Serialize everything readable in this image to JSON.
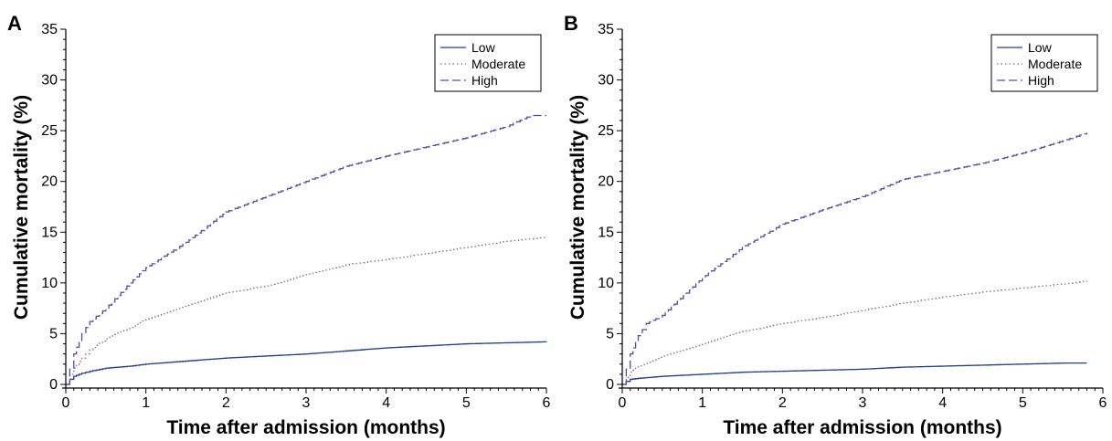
{
  "chart_data": [
    {
      "type": "line",
      "panel_label": "A",
      "xlabel": "Time after admission (months)",
      "ylabel": "Cumulative mortality (%)",
      "xlim": [
        0,
        6
      ],
      "ylim": [
        0,
        35
      ],
      "xticks": [
        0,
        1,
        2,
        3,
        4,
        5,
        6
      ],
      "yticks": [
        0,
        5,
        10,
        15,
        20,
        25,
        30,
        35
      ],
      "grid": false,
      "legend_position": "top-right",
      "series": [
        {
          "name": "Low",
          "style": "solid",
          "color": "#1f3f8f",
          "x": [
            0,
            0.05,
            0.1,
            0.2,
            0.3,
            0.5,
            0.8,
            1.0,
            1.5,
            2.0,
            2.5,
            3.0,
            3.5,
            4.0,
            4.5,
            5.0,
            5.5,
            6.0
          ],
          "y": [
            0,
            0.5,
            0.8,
            1.1,
            1.3,
            1.6,
            1.8,
            2.0,
            2.3,
            2.6,
            2.8,
            3.0,
            3.3,
            3.6,
            3.8,
            4.0,
            4.1,
            4.2
          ]
        },
        {
          "name": "Moderate",
          "style": "dotted",
          "color": "#8a6a9a",
          "x": [
            0,
            0.05,
            0.1,
            0.2,
            0.3,
            0.5,
            0.8,
            1.0,
            1.5,
            2.0,
            2.5,
            3.0,
            3.5,
            4.0,
            4.5,
            5.0,
            5.5,
            6.0
          ],
          "y": [
            0,
            1.0,
            1.6,
            2.6,
            3.4,
            4.5,
            5.6,
            6.4,
            7.8,
            9.0,
            9.7,
            10.8,
            11.8,
            12.3,
            12.9,
            13.5,
            14.1,
            14.5
          ]
        },
        {
          "name": "High",
          "style": "dashed",
          "color": "#5a4aa0",
          "x": [
            0,
            0.05,
            0.1,
            0.2,
            0.3,
            0.5,
            0.8,
            1.0,
            1.5,
            2.0,
            2.5,
            3.0,
            3.5,
            4.0,
            4.5,
            5.0,
            5.5,
            5.8,
            6.0
          ],
          "y": [
            0,
            1.5,
            3.0,
            5.0,
            6.2,
            7.5,
            10.0,
            11.5,
            14.0,
            17.0,
            18.5,
            20.0,
            21.5,
            22.5,
            23.4,
            24.3,
            25.4,
            26.5,
            26.5
          ]
        }
      ]
    },
    {
      "type": "line",
      "panel_label": "B",
      "xlabel": "Time after admission (months)",
      "ylabel": "Cumulative mortality (%)",
      "xlim": [
        0,
        6
      ],
      "ylim": [
        0,
        35
      ],
      "xticks": [
        0,
        1,
        2,
        3,
        4,
        5,
        6
      ],
      "yticks": [
        0,
        5,
        10,
        15,
        20,
        25,
        30,
        35
      ],
      "grid": false,
      "legend_position": "top-right",
      "series": [
        {
          "name": "Low",
          "style": "solid",
          "color": "#1f3f8f",
          "x": [
            0,
            0.05,
            0.1,
            0.2,
            0.5,
            1.0,
            1.5,
            2.0,
            2.5,
            3.0,
            3.5,
            4.0,
            4.5,
            5.0,
            5.5,
            5.8
          ],
          "y": [
            0,
            0.3,
            0.5,
            0.6,
            0.8,
            1.0,
            1.2,
            1.3,
            1.4,
            1.5,
            1.7,
            1.8,
            1.9,
            2.0,
            2.1,
            2.1
          ]
        },
        {
          "name": "Moderate",
          "style": "dotted",
          "color": "#8a6a9a",
          "x": [
            0,
            0.05,
            0.1,
            0.2,
            0.5,
            1.0,
            1.5,
            2.0,
            2.5,
            3.0,
            3.5,
            4.0,
            4.5,
            5.0,
            5.5,
            5.8
          ],
          "y": [
            0,
            0.7,
            1.2,
            1.8,
            2.8,
            4.0,
            5.2,
            6.0,
            6.6,
            7.3,
            8.0,
            8.6,
            9.1,
            9.5,
            9.9,
            10.2
          ]
        },
        {
          "name": "High",
          "style": "dashed",
          "color": "#5a4aa0",
          "x": [
            0,
            0.05,
            0.1,
            0.2,
            0.3,
            0.5,
            0.8,
            1.0,
            1.5,
            2.0,
            2.5,
            3.0,
            3.5,
            4.0,
            4.5,
            5.0,
            5.5,
            5.8
          ],
          "y": [
            0,
            1.5,
            3.0,
            4.8,
            6.0,
            6.8,
            9.0,
            10.5,
            13.5,
            15.8,
            17.2,
            18.5,
            20.2,
            21.0,
            21.8,
            22.8,
            24.0,
            24.8
          ]
        }
      ]
    }
  ]
}
